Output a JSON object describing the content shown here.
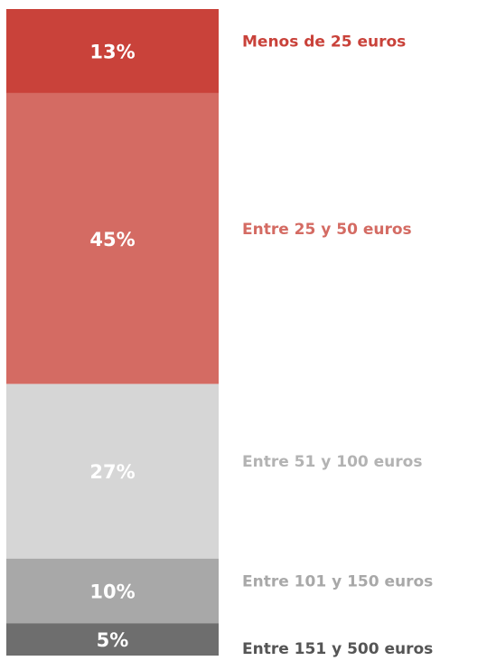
{
  "chart_data": {
    "type": "stacked_bar",
    "series": [
      {
        "name": "Menos de 25 euros",
        "color": "#c9423a",
        "values": [
          13
        ],
        "value_labels": [
          "13%"
        ]
      },
      {
        "name": "Entre 25 y 50 euros",
        "color": "#d46b63",
        "values": [
          45
        ],
        "value_labels": [
          "45%"
        ]
      },
      {
        "name": "Entre 51 y 100 euros",
        "color": "#d6d6d6",
        "values": [
          27
        ],
        "value_labels": [
          "27%"
        ]
      },
      {
        "name": "Entre 101 y 150 euros",
        "color": "#a8a8a8",
        "values": [
          10
        ],
        "value_labels": [
          "10%"
        ]
      },
      {
        "name": "Entre 151 y 500 euros",
        "color": "#6e6e6e",
        "values": [
          5
        ],
        "value_labels": [
          "5%"
        ]
      }
    ]
  }
}
